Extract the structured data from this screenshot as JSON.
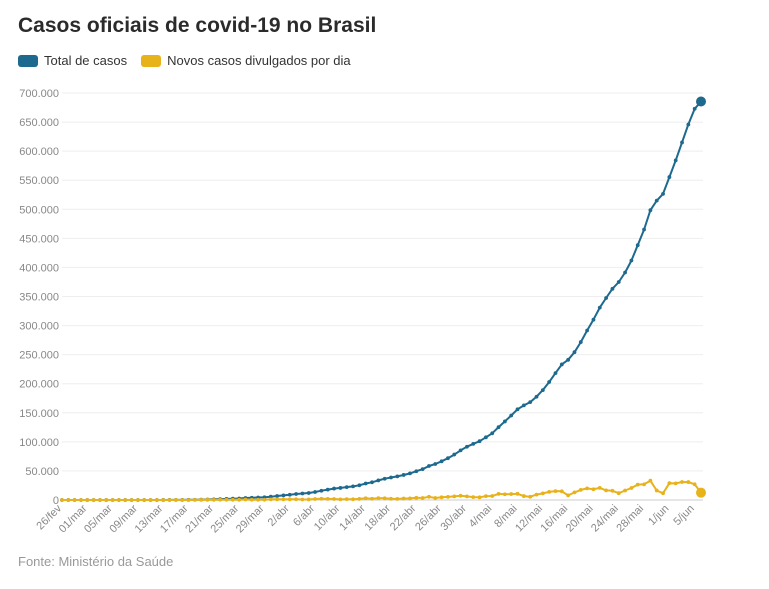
{
  "header": {
    "title": "Casos oficiais de covid-19 no Brasil"
  },
  "footer": {
    "source": "Fonte: Ministério da Saúde"
  },
  "colors": {
    "total": "#1e6a8f",
    "daily": "#e8b21a",
    "grid": "#eeeeee"
  },
  "chart_data": {
    "type": "line",
    "ylim": [
      0,
      700000
    ],
    "yticks": [
      0,
      50000,
      100000,
      150000,
      200000,
      250000,
      300000,
      350000,
      400000,
      450000,
      500000,
      550000,
      600000,
      650000,
      700000
    ],
    "ytick_labels": [
      "0",
      "50.000",
      "100.000",
      "150.000",
      "200.000",
      "250.000",
      "300.000",
      "350.000",
      "400.000",
      "450.000",
      "500.000",
      "550.000",
      "600.000",
      "650.000",
      "700.000"
    ],
    "xtick_labels": [
      "26/fev",
      "01/mar",
      "05/mar",
      "09/mar",
      "13/mar",
      "17/mar",
      "21/mar",
      "25/mar",
      "29/mar",
      "2/abr",
      "6/abr",
      "10/abr",
      "14/abr",
      "18/abr",
      "22/abr",
      "26/abr",
      "30/abr",
      "4/mai",
      "8/mai",
      "12/mai",
      "16/mai",
      "20/mai",
      "24/mai",
      "28/mai",
      "1/jun",
      "5/jun"
    ],
    "x_start": "2020-02-26",
    "x_end": "2020-06-06",
    "grid": true,
    "legend": "top-left",
    "series": [
      {
        "name": "Total de casos",
        "values": [
          1,
          1,
          1,
          2,
          2,
          2,
          2,
          3,
          3,
          4,
          8,
          13,
          20,
          25,
          34,
          52,
          77,
          121,
          200,
          234,
          291,
          428,
          621,
          904,
          1128,
          1546,
          1924,
          2247,
          2554,
          3417,
          3904,
          4256,
          4630,
          5717,
          6836,
          7910,
          9056,
          10278,
          11130,
          12056,
          13717,
          15927,
          17857,
          19638,
          20727,
          22169,
          23430,
          25262,
          28320,
          30425,
          33682,
          36599,
          38654,
          40581,
          43079,
          45757,
          49492,
          52995,
          58509,
          61888,
          66501,
          71886,
          78162,
          85380,
          91589,
          96559,
          101147,
          107780,
          114715,
          125218,
          135106,
          145328,
          155939,
          162699,
          168331,
          177589,
          188974,
          202918,
          218223,
          233142,
          241080,
          254220,
          271628,
          291579,
          310087,
          330890,
          347398,
          363211,
          374898,
          391222,
          411821,
          438238,
          465166,
          498440,
          514849,
          526447,
          555383,
          584016,
          614941,
          645771,
          672846,
          685427
        ],
        "last_value": 685427
      },
      {
        "name": "Novos casos divulgados por dia",
        "values": [
          1,
          0,
          0,
          1,
          0,
          0,
          0,
          1,
          0,
          1,
          4,
          5,
          7,
          5,
          9,
          18,
          25,
          44,
          79,
          34,
          57,
          137,
          193,
          283,
          224,
          418,
          378,
          323,
          307,
          863,
          487,
          352,
          374,
          1087,
          1119,
          1074,
          1146,
          1222,
          852,
          926,
          1661,
          2210,
          1930,
          1781,
          1089,
          1442,
          1261,
          1832,
          3058,
          2105,
          3257,
          2917,
          2055,
          1927,
          2498,
          2678,
          3735,
          3503,
          5514,
          3379,
          4613,
          5385,
          6276,
          7218,
          6209,
          4970,
          4588,
          6633,
          6935,
          10503,
          9888,
          10222,
          10611,
          6760,
          5632,
          9258,
          11385,
          13944,
          15305,
          14919,
          7938,
          13140,
          17408,
          19951,
          18508,
          20803,
          16508,
          15813,
          11687,
          16324,
          20599,
          26417,
          26928,
          33274,
          16409,
          11598,
          28936,
          28633,
          30925,
          30830,
          27075,
          12581
        ],
        "last_value": 12581
      }
    ]
  }
}
